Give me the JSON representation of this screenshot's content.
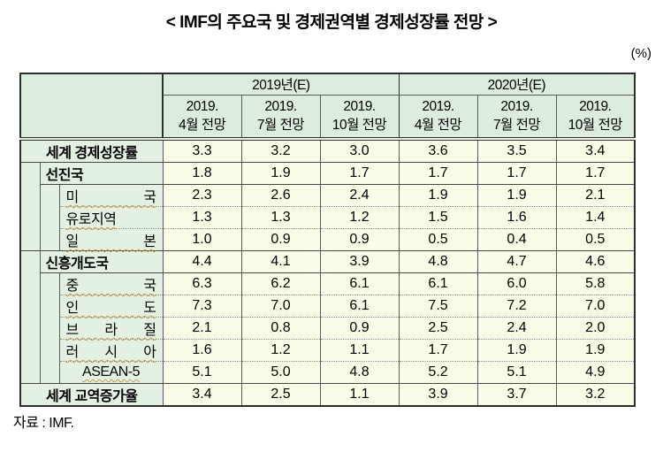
{
  "title": "< IMF의 주요국 및 경제권역별 경제성장률 전망 >",
  "unit_label": "(%)",
  "source": "자료 : IMF.",
  "colors": {
    "header_bg": "#dcecdd",
    "label_bg": "#e3f1e3",
    "cell_bg": "#fbfce8",
    "border_dark": "#2e2e2e",
    "border_mid": "#5a5a5a",
    "border_row": "#474747",
    "border_dotted": "#909090",
    "spellcheck_underline": "#c99c54"
  },
  "table": {
    "col_groups": [
      {
        "label": "2019년(E)",
        "subcols": [
          {
            "line1": "2019.",
            "line2": "4월 전망"
          },
          {
            "line1": "2019.",
            "line2": "7월 전망"
          },
          {
            "line1": "2019.",
            "line2": "10월 전망"
          }
        ]
      },
      {
        "label": "2020년(E)",
        "subcols": [
          {
            "line1": "2019.",
            "line2": "4월 전망"
          },
          {
            "line1": "2019.",
            "line2": "7월 전망"
          },
          {
            "line1": "2019.",
            "line2": "10월 전망"
          }
        ]
      }
    ],
    "rows": [
      {
        "label": "세계 경제성장률",
        "level": 0,
        "bold": true,
        "justify": false,
        "center": true,
        "underline": false,
        "values": [
          "3.3",
          "3.2",
          "3.0",
          "3.6",
          "3.5",
          "3.4"
        ]
      },
      {
        "label": "선진국",
        "level": 1,
        "bold": true,
        "justify": false,
        "center": false,
        "underline": false,
        "values": [
          "1.8",
          "1.9",
          "1.7",
          "1.7",
          "1.7",
          "1.7"
        ]
      },
      {
        "label": "미 국",
        "level": 2,
        "bold": false,
        "justify": true,
        "center": false,
        "underline": true,
        "values": [
          "2.3",
          "2.6",
          "2.4",
          "1.9",
          "1.9",
          "2.1"
        ]
      },
      {
        "label": "유로지역",
        "level": 2,
        "bold": false,
        "justify": true,
        "center": false,
        "underline": true,
        "values": [
          "1.3",
          "1.3",
          "1.2",
          "1.5",
          "1.6",
          "1.4"
        ]
      },
      {
        "label": "일 본",
        "level": 2,
        "bold": false,
        "justify": true,
        "center": false,
        "underline": true,
        "values": [
          "1.0",
          "0.9",
          "0.9",
          "0.5",
          "0.4",
          "0.5"
        ]
      },
      {
        "label": "신흥개도국",
        "level": 1,
        "bold": true,
        "justify": false,
        "center": false,
        "underline": false,
        "values": [
          "4.4",
          "4.1",
          "3.9",
          "4.8",
          "4.7",
          "4.6"
        ]
      },
      {
        "label": "중 국",
        "level": 2,
        "bold": false,
        "justify": true,
        "center": false,
        "underline": true,
        "values": [
          "6.3",
          "6.2",
          "6.1",
          "6.1",
          "6.0",
          "5.8"
        ]
      },
      {
        "label": "인 도",
        "level": 2,
        "bold": false,
        "justify": true,
        "center": false,
        "underline": true,
        "values": [
          "7.3",
          "7.0",
          "6.1",
          "7.5",
          "7.2",
          "7.0"
        ]
      },
      {
        "label": "브 라 질",
        "level": 2,
        "bold": false,
        "justify": true,
        "center": false,
        "underline": true,
        "values": [
          "2.1",
          "0.8",
          "0.9",
          "2.5",
          "2.4",
          "2.0"
        ]
      },
      {
        "label": "러 시 아",
        "level": 2,
        "bold": false,
        "justify": true,
        "center": false,
        "underline": true,
        "values": [
          "1.6",
          "1.2",
          "1.1",
          "1.7",
          "1.9",
          "1.9"
        ]
      },
      {
        "label": "ASEAN-5",
        "level": 2,
        "bold": false,
        "justify": false,
        "center": true,
        "underline": true,
        "values": [
          "5.1",
          "5.0",
          "4.8",
          "5.2",
          "5.1",
          "4.9"
        ]
      },
      {
        "label": "세계 교역증가율",
        "level": 0,
        "bold": true,
        "justify": false,
        "center": true,
        "underline": false,
        "values": [
          "3.4",
          "2.5",
          "1.1",
          "3.9",
          "3.7",
          "3.2"
        ]
      }
    ]
  }
}
